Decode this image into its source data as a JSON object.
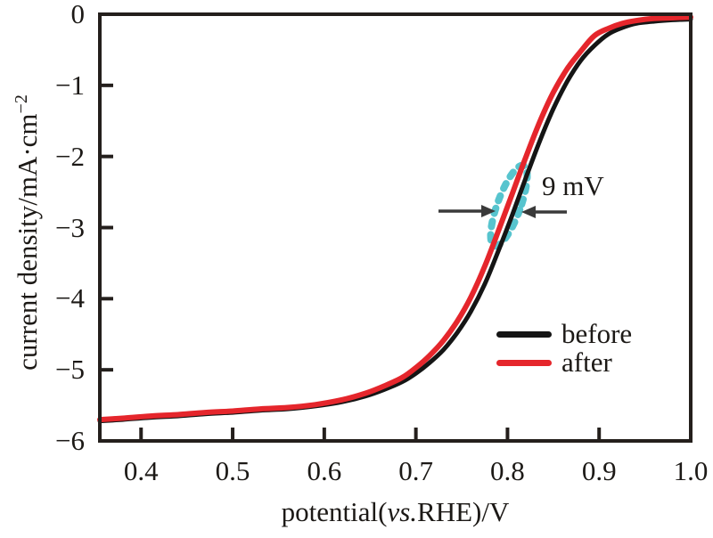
{
  "figure": {
    "background": "#ffffff",
    "frame_color": "#241f1c",
    "text_color": "#1c1916"
  },
  "chart_data": {
    "type": "line",
    "title": "",
    "xlabel": {
      "prefix": "potential(",
      "italic": "vs.",
      "suffix": "RHE)/V"
    },
    "ylabel": {
      "main": "current density/mA·cm",
      "superscript": "−2"
    },
    "xlim": [
      0.355,
      1.0
    ],
    "ylim": [
      -6,
      0
    ],
    "x_ticks": [
      0.4,
      0.5,
      0.6,
      0.7,
      0.8,
      0.9,
      1.0
    ],
    "y_ticks": [
      0,
      -1,
      -2,
      -3,
      -4,
      -5,
      -6
    ],
    "grid": false,
    "legend": {
      "position": "center-right",
      "entries": [
        "before",
        "after"
      ]
    },
    "series": [
      {
        "name": "before",
        "color": "#151515",
        "width": 5,
        "x": [
          0.355,
          0.38,
          0.41,
          0.44,
          0.47,
          0.5,
          0.53,
          0.56,
          0.59,
          0.62,
          0.645,
          0.665,
          0.685,
          0.7,
          0.715,
          0.73,
          0.745,
          0.76,
          0.775,
          0.79,
          0.805,
          0.82,
          0.835,
          0.85,
          0.865,
          0.88,
          0.895,
          0.91,
          0.925,
          0.94,
          0.96,
          0.98,
          1.0
        ],
        "y": [
          -5.72,
          -5.7,
          -5.67,
          -5.65,
          -5.62,
          -5.6,
          -5.57,
          -5.55,
          -5.51,
          -5.45,
          -5.37,
          -5.28,
          -5.17,
          -5.05,
          -4.9,
          -4.72,
          -4.48,
          -4.18,
          -3.8,
          -3.33,
          -2.83,
          -2.3,
          -1.79,
          -1.33,
          -0.95,
          -0.65,
          -0.44,
          -0.28,
          -0.19,
          -0.13,
          -0.1,
          -0.08,
          -0.07
        ]
      },
      {
        "name": "after",
        "color": "#e5262c",
        "width": 6,
        "x": [
          0.355,
          0.38,
          0.41,
          0.44,
          0.47,
          0.5,
          0.53,
          0.56,
          0.59,
          0.62,
          0.645,
          0.665,
          0.685,
          0.7,
          0.715,
          0.73,
          0.745,
          0.76,
          0.775,
          0.79,
          0.805,
          0.82,
          0.835,
          0.85,
          0.865,
          0.88,
          0.895,
          0.91,
          0.925,
          0.94,
          0.96,
          0.98,
          1.0
        ],
        "y": [
          -5.7,
          -5.68,
          -5.65,
          -5.63,
          -5.6,
          -5.58,
          -5.55,
          -5.53,
          -5.49,
          -5.42,
          -5.33,
          -5.23,
          -5.11,
          -4.97,
          -4.8,
          -4.59,
          -4.32,
          -3.98,
          -3.55,
          -3.05,
          -2.53,
          -2.01,
          -1.52,
          -1.1,
          -0.77,
          -0.52,
          -0.3,
          -0.2,
          -0.13,
          -0.09,
          -0.06,
          -0.05,
          -0.04
        ]
      }
    ],
    "annotation": {
      "label": "9 mV",
      "highlight_color": "#57c4ce",
      "arrow_color": "#3a3a3a"
    }
  }
}
